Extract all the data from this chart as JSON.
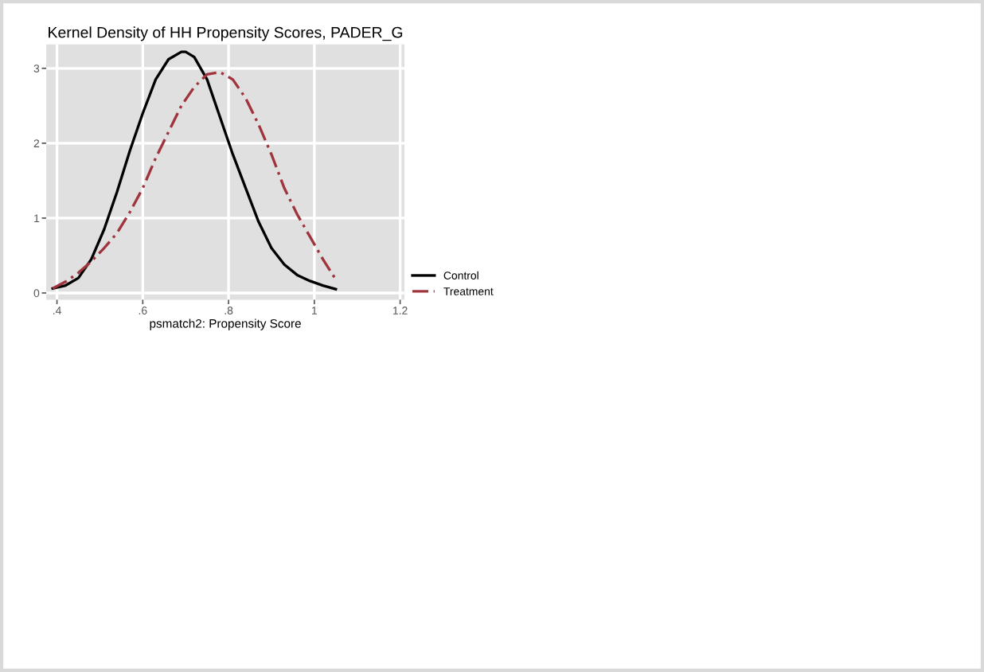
{
  "chart_data": {
    "type": "line",
    "title": "Kernel Density of HH Propensity Scores, PADER_G",
    "xlabel": "psmatch2: Propensity Score",
    "series": [
      {
        "name": "Control",
        "color": "#000000",
        "line_style": "solid",
        "x": [
          0.39,
          0.42,
          0.45,
          0.48,
          0.51,
          0.54,
          0.57,
          0.6,
          0.63,
          0.66,
          0.69,
          0.7,
          0.72,
          0.75,
          0.78,
          0.81,
          0.84,
          0.87,
          0.9,
          0.93,
          0.96,
          0.99,
          1.02,
          1.05
        ],
        "values": [
          0.06,
          0.1,
          0.2,
          0.45,
          0.85,
          1.35,
          1.9,
          2.4,
          2.85,
          3.12,
          3.22,
          3.22,
          3.15,
          2.85,
          2.35,
          1.85,
          1.4,
          0.95,
          0.6,
          0.38,
          0.24,
          0.16,
          0.1,
          0.05
        ]
      },
      {
        "name": "Treatment",
        "color": "#a0343c",
        "line_style": "dashed",
        "x": [
          0.39,
          0.42,
          0.45,
          0.48,
          0.51,
          0.54,
          0.57,
          0.6,
          0.63,
          0.66,
          0.69,
          0.72,
          0.75,
          0.78,
          0.81,
          0.84,
          0.87,
          0.9,
          0.93,
          0.96,
          0.99,
          1.02,
          1.05
        ],
        "values": [
          0.06,
          0.15,
          0.27,
          0.42,
          0.6,
          0.8,
          1.08,
          1.4,
          1.8,
          2.15,
          2.5,
          2.75,
          2.92,
          2.95,
          2.85,
          2.6,
          2.25,
          1.85,
          1.4,
          1.05,
          0.75,
          0.45,
          0.18
        ]
      }
    ],
    "xlim": [
      0.375,
      1.21
    ],
    "ylim": [
      -0.09,
      3.32
    ],
    "xticks": [
      {
        "value": 0.4,
        "label": ".4"
      },
      {
        "value": 0.6,
        "label": ".6"
      },
      {
        "value": 0.8,
        "label": ".8"
      },
      {
        "value": 1,
        "label": "1"
      },
      {
        "value": 1.2,
        "label": "1.2"
      }
    ],
    "yticks": [
      0,
      1,
      2,
      3
    ],
    "grid": true,
    "legend": "right"
  }
}
